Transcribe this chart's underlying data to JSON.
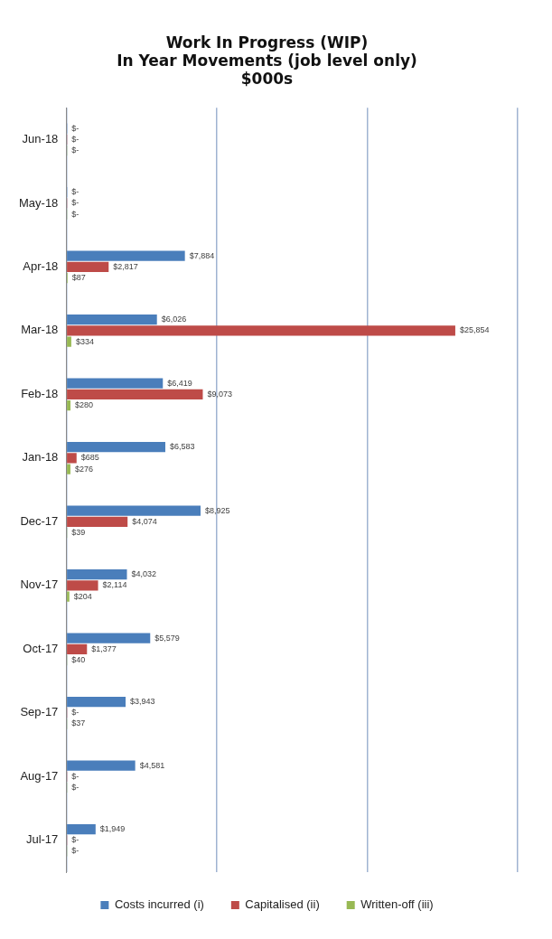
{
  "chart_data": {
    "type": "bar",
    "orientation": "horizontal",
    "title": "Work In Progress (WIP)\nIn Year Movements (job level only)\n$000s",
    "categories": [
      "Jun-18",
      "May-18",
      "Apr-18",
      "Mar-18",
      "Feb-18",
      "Jan-18",
      "Dec-17",
      "Nov-17",
      "Oct-17",
      "Sep-17",
      "Aug-17",
      "Jul-17"
    ],
    "series": [
      {
        "name": "Costs incurred (i)",
        "color": "#4a7ebb",
        "values": [
          0,
          0,
          7884,
          6026,
          6419,
          6583,
          8925,
          4032,
          5579,
          3943,
          4581,
          1949
        ],
        "value_labels": [
          "$-",
          "$-",
          "$7,884",
          "$6,026",
          "$6,419",
          "$6,583",
          "$8,925",
          "$4,032",
          "$5,579",
          "$3,943",
          "$4,581",
          "$1,949"
        ]
      },
      {
        "name": "Capitalised (ii)",
        "color": "#be4b48",
        "values": [
          0,
          0,
          2817,
          25854,
          9073,
          685,
          4074,
          2114,
          1377,
          0,
          0,
          0
        ],
        "value_labels": [
          "$-",
          "$-",
          "$2,817",
          "$25,854",
          "$9,073",
          "$685",
          "$4,074",
          "$2,114",
          "$1,377",
          "$-",
          "$-",
          "$-"
        ]
      },
      {
        "name": "Written-off (iii)",
        "color": "#98b954",
        "values": [
          0,
          0,
          87,
          334,
          280,
          276,
          39,
          204,
          40,
          37,
          0,
          0
        ],
        "value_labels": [
          "$-",
          "$-",
          "$87",
          "$334",
          "$280",
          "$276",
          "$39",
          "$204",
          "$40",
          "$37",
          "$-",
          "$-"
        ]
      }
    ],
    "xlim": [
      0,
      30000
    ],
    "xticks": [
      {
        "value": 0,
        "label": null
      },
      {
        "value": 10000,
        "label": null
      },
      {
        "value": 20000,
        "label": null
      },
      {
        "value": 30000,
        "label": null
      }
    ],
    "tick_labels": "y",
    "grid": "x",
    "legend": "bottom"
  }
}
